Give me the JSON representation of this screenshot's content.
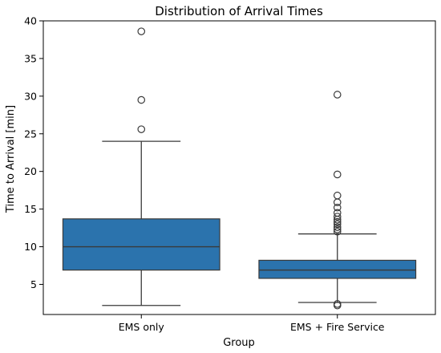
{
  "chart_data": {
    "type": "box",
    "title": "Distribution of Arrival Times",
    "xlabel": "Group",
    "ylabel": "Time to Arrival [min]",
    "ylim": [
      1,
      40
    ],
    "yticks": [
      5,
      10,
      15,
      20,
      25,
      30,
      35,
      40
    ],
    "grid": false,
    "box_color": "#2b73ad",
    "categories": [
      "EMS only",
      "EMS + Fire Service"
    ],
    "groups": [
      {
        "category": "EMS only",
        "whisker_low": 2.2,
        "q1": 6.9,
        "median": 10.0,
        "q3": 13.7,
        "whisker_high": 24.0,
        "outliers": [
          25.6,
          29.5,
          38.6
        ]
      },
      {
        "category": "EMS + Fire Service",
        "whisker_low": 2.6,
        "q1": 5.8,
        "median": 6.9,
        "q3": 8.2,
        "whisker_high": 11.7,
        "outliers": [
          2.2,
          2.4,
          12.0,
          12.3,
          12.6,
          13.0,
          13.3,
          13.6,
          14.0,
          14.5,
          15.2,
          15.9,
          16.8,
          19.6,
          30.2
        ]
      }
    ]
  }
}
